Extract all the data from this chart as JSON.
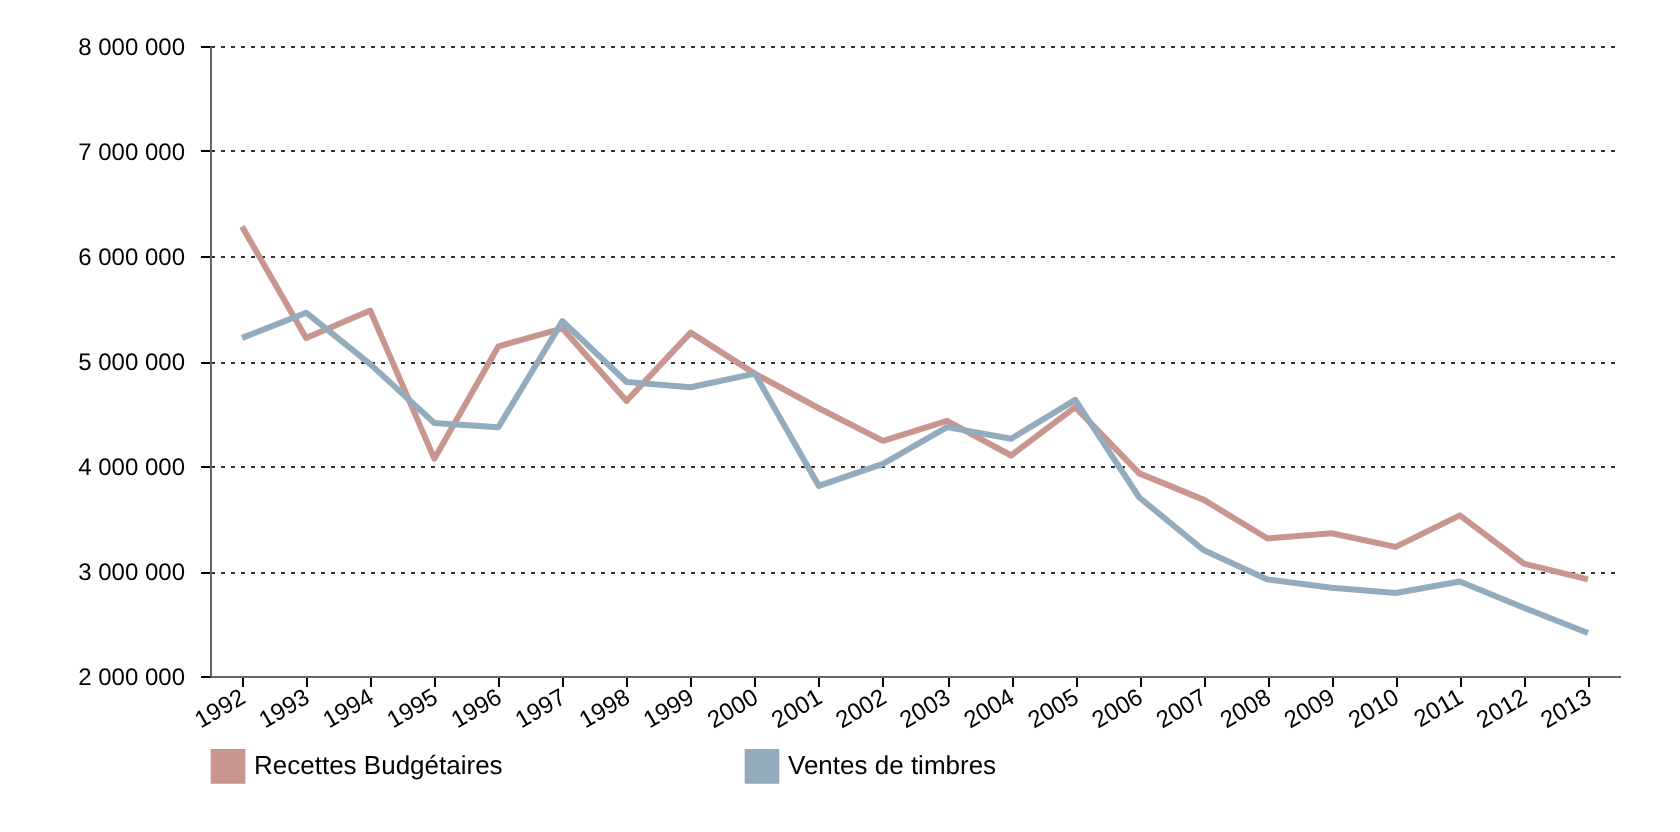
{
  "chart_data": {
    "type": "line",
    "categories": [
      "1992",
      "1993",
      "1994",
      "1995",
      "1996",
      "1997",
      "1998",
      "1999",
      "2000",
      "2001",
      "2002",
      "2003",
      "2004",
      "2005",
      "2006",
      "2007",
      "2008",
      "2009",
      "2010",
      "2011",
      "2012",
      "2013"
    ],
    "series": [
      {
        "name": "Recettes Budgétaires",
        "color": "#c9958f",
        "values": [
          6280000,
          5220000,
          5480000,
          4070000,
          5140000,
          5310000,
          4620000,
          5270000,
          4880000,
          4550000,
          4240000,
          4430000,
          4100000,
          4560000,
          3930000,
          3680000,
          3310000,
          3360000,
          3230000,
          3530000,
          3070000,
          2920000
        ]
      },
      {
        "name": "Ventes de timbres",
        "color": "#93acbd",
        "values": [
          5220000,
          5460000,
          4970000,
          4410000,
          4370000,
          5380000,
          4800000,
          4750000,
          4880000,
          3810000,
          4020000,
          4370000,
          4260000,
          4630000,
          3700000,
          3200000,
          2920000,
          2840000,
          2790000,
          2900000,
          2650000,
          2410000
        ]
      }
    ],
    "ylim": [
      2000000,
      8000000
    ],
    "yticks": [
      {
        "value": 2000000,
        "label": "2 000 000"
      },
      {
        "value": 3000000,
        "label": "3 000 000"
      },
      {
        "value": 4000000,
        "label": "4 000 000"
      },
      {
        "value": 5000000,
        "label": "5 000 000"
      },
      {
        "value": 6000000,
        "label": "6 000 000"
      },
      {
        "value": 7000000,
        "label": "7 000 000"
      },
      {
        "value": 8000000,
        "label": "8 000 000"
      }
    ],
    "grid": "y",
    "legend": "bottom",
    "line_style": "solid"
  }
}
